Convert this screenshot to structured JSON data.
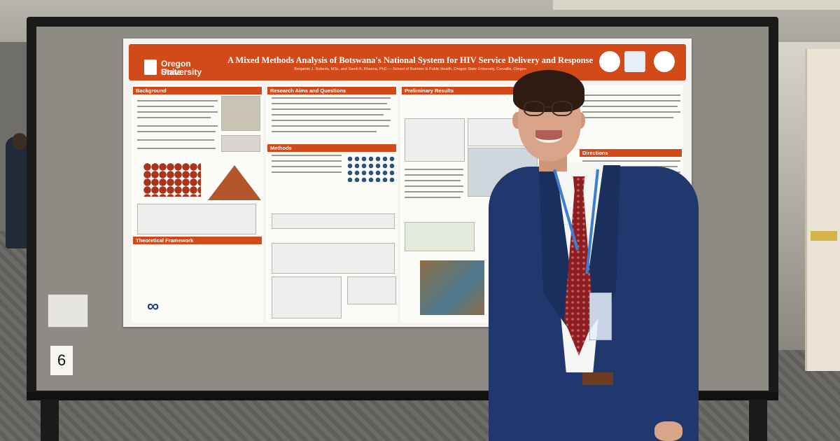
{
  "scene": {
    "description_tags": [
      "poster-session",
      "conference",
      "presenter"
    ],
    "colors": {
      "banner": "#d2491a",
      "jacket": "#20386e",
      "tie": "#8d1f22",
      "board": "#8d8b84"
    }
  },
  "poster": {
    "title": "A Mixed Methods Analysis of Botswana's National System for HIV Service Delivery and Response",
    "authors": "Benjamin J. Roberts, MSc, and Sandi K. Khanna, PhD",
    "affiliation": "School of Nutrition & Public Health, Oregon State University, Corvallis, Oregon",
    "university_logo_line1": "Oregon State",
    "university_logo_line2": "University",
    "sections": {
      "background": "Background",
      "research_aims": "Research Aims and Questions",
      "preliminary_results": "Preliminary Results",
      "methods": "Methods",
      "theoretical_framework": "Theoretical Framework",
      "directions": "Directions"
    }
  },
  "board": {
    "number": "6"
  }
}
